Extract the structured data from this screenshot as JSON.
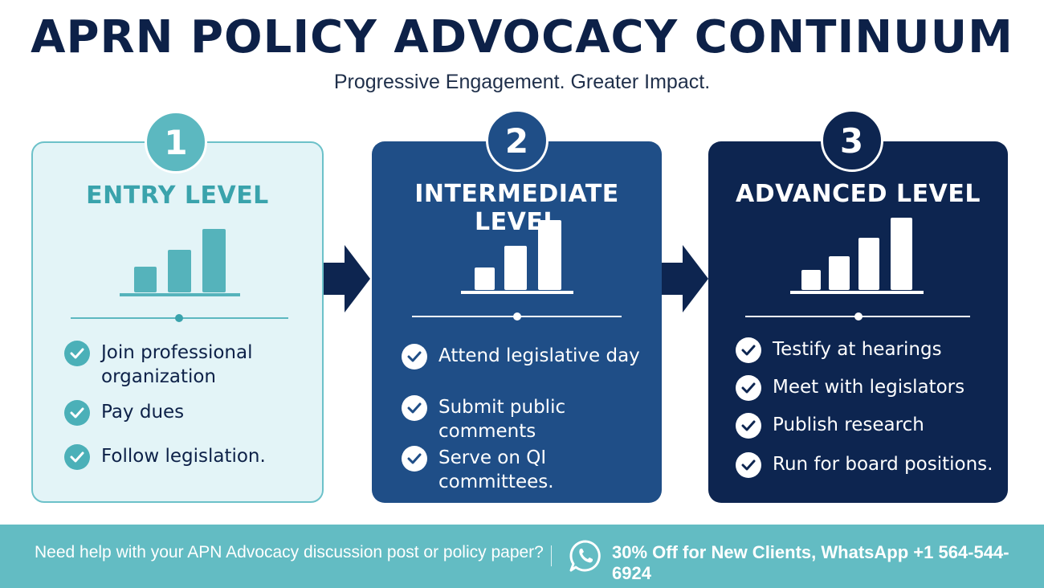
{
  "header": {
    "title": "APRN POLICY ADVOCACY CONTINUUM",
    "subtitle": "Progressive Engagement. Greater Impact."
  },
  "levels": [
    {
      "number": "1",
      "title": "ENTRY LEVEL",
      "items": [
        "Join professional organization",
        "Pay dues",
        "Follow legislation."
      ]
    },
    {
      "number": "2",
      "title": "INTERMEDIATE LEVEL",
      "items": [
        "Attend legislative day",
        "Submit public comments",
        "Serve on QI committees."
      ]
    },
    {
      "number": "3",
      "title": "ADVANCED LEVEL",
      "items": [
        "Testify at hearings",
        "Meet with legislators",
        "Publish research",
        "Run for board positions."
      ]
    }
  ],
  "footer": {
    "help_text": "Need help with your APN Advocacy discussion post or policy paper?",
    "offer_text": "30% Off for New Clients, WhatsApp +1 564-544-6924",
    "icon": "whatsapp-icon"
  },
  "colors": {
    "navy": "#0d2550",
    "blue": "#1f4e87",
    "teal": "#5cb8c0",
    "light_teal_bg": "#e3f4f7"
  }
}
